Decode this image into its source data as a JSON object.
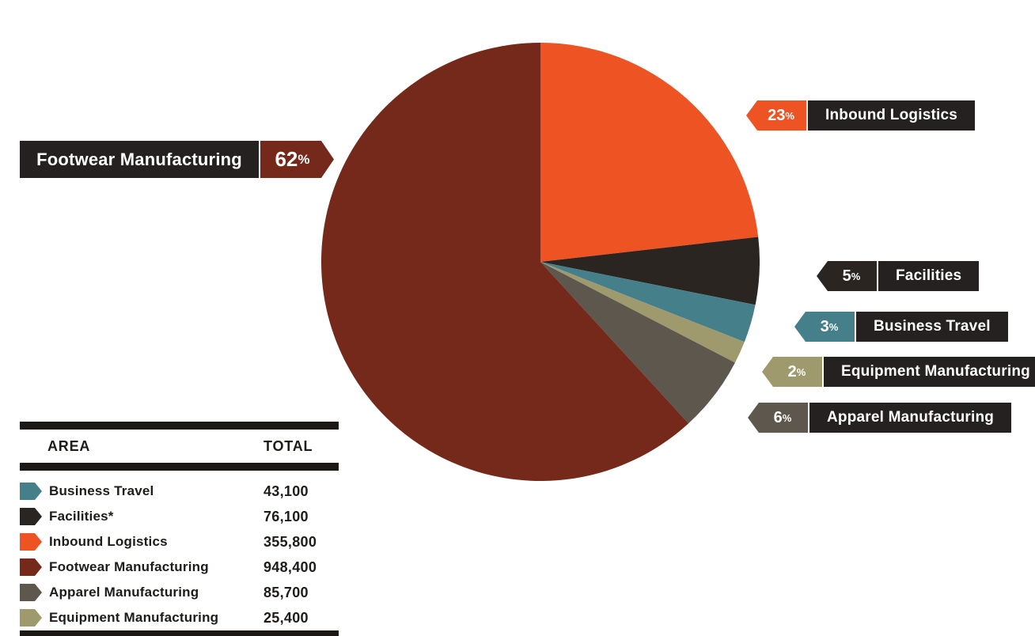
{
  "strings": {
    "percent_symbol": "%"
  },
  "chart_data": {
    "type": "pie",
    "direction": "clockwise",
    "start_angle_deg": 0,
    "legend_position": "right-callouts-and-bottom-left-table",
    "slices": [
      {
        "label": "Inbound Logistics",
        "value": 355800,
        "percent": "23",
        "color": "#EE5323"
      },
      {
        "label": "Facilities",
        "value": 76100,
        "percent": "5",
        "color": "#2B2522"
      },
      {
        "label": "Business Travel",
        "value": 43100,
        "percent": "3",
        "color": "#45808A"
      },
      {
        "label": "Equipment Manufacturing",
        "value": 25400,
        "percent": "2",
        "color": "#9E9A6E"
      },
      {
        "label": "Apparel Manufacturing",
        "value": 85700,
        "percent": "6",
        "color": "#5D574E"
      },
      {
        "label": "Footwear Manufacturing",
        "value": 948400,
        "percent": "62",
        "color": "#74291A"
      }
    ]
  },
  "callouts": {
    "footwear": {
      "label": "Footwear Manufacturing",
      "pct": "62",
      "color": "#74291A"
    },
    "inbound": {
      "label": "Inbound Logistics",
      "pct": "23",
      "color": "#EE5323"
    },
    "facilities": {
      "label": "Facilities",
      "pct": "5",
      "color": "#2B2522"
    },
    "business": {
      "label": "Business Travel",
      "pct": "3",
      "color": "#45808A"
    },
    "equipment": {
      "label": "Equipment Manufacturing",
      "pct": "2",
      "color": "#9E9A6E"
    },
    "apparel": {
      "label": "Apparel Manufacturing",
      "pct": "6",
      "color": "#5D574E"
    }
  },
  "table": {
    "headers": {
      "area": "AREA",
      "total": "TOTAL"
    },
    "rows": [
      {
        "area": "Business Travel",
        "total": "43,100",
        "color": "#45808A"
      },
      {
        "area": "Facilities*",
        "total": "76,100",
        "color": "#2B2522"
      },
      {
        "area": "Inbound Logistics",
        "total": "355,800",
        "color": "#EE5323"
      },
      {
        "area": "Footwear Manufacturing",
        "total": "948,400",
        "color": "#74291A"
      },
      {
        "area": "Apparel Manufacturing",
        "total": "85,700",
        "color": "#5D574E"
      },
      {
        "area": "Equipment Manufacturing",
        "total": "25,400",
        "color": "#9E9A6E"
      }
    ]
  },
  "colors": {
    "background": "#FFFFFF",
    "label_box": "#252120",
    "table_bar": "#1B1816",
    "table_text": "#1E1B19"
  }
}
